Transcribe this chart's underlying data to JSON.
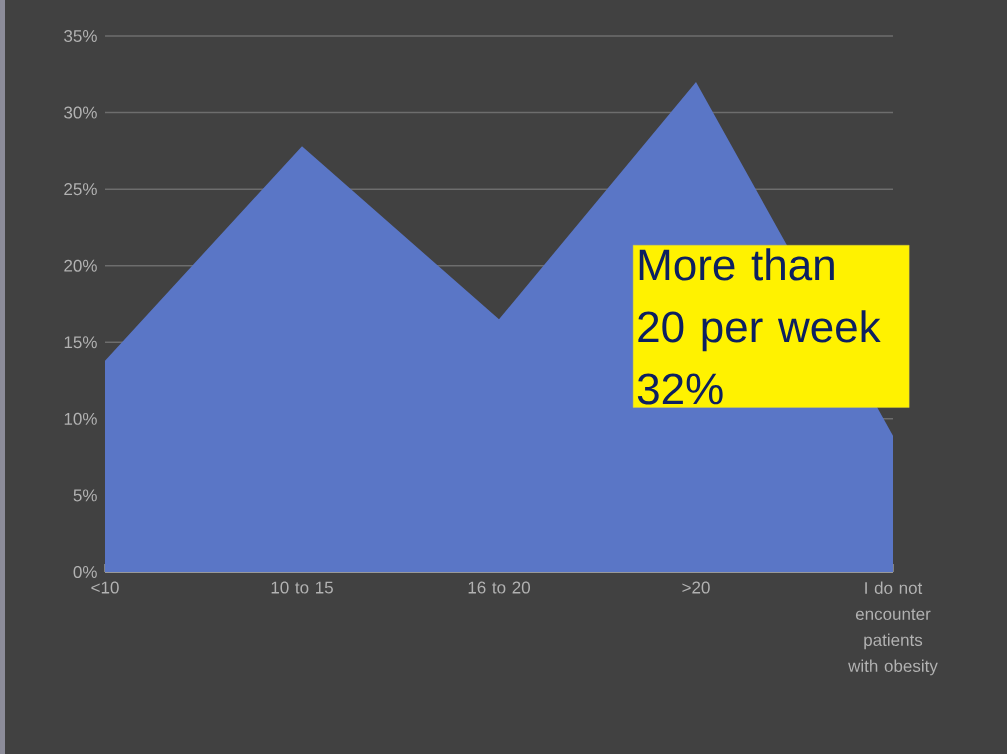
{
  "chart_data": {
    "type": "area",
    "categories": [
      "<10",
      "10 to 15",
      "16 to 20",
      ">20",
      "I do not encounter patients with obesity"
    ],
    "values": [
      13.8,
      27.8,
      16.5,
      32,
      8.9
    ],
    "color": "#5a76c6",
    "ylim": [
      0,
      35
    ],
    "yticks": [
      {
        "value": 0,
        "label": "0%"
      },
      {
        "value": 5,
        "label": "5%"
      },
      {
        "value": 10,
        "label": "10%"
      },
      {
        "value": 15,
        "label": "15%"
      },
      {
        "value": 20,
        "label": "20%"
      },
      {
        "value": 25,
        "label": "25%"
      },
      {
        "value": 30,
        "label": "30%"
      },
      {
        "value": 35,
        "label": "35%"
      }
    ],
    "grid": "y",
    "annotations": [
      "More than 20 per week 32%"
    ]
  }
}
